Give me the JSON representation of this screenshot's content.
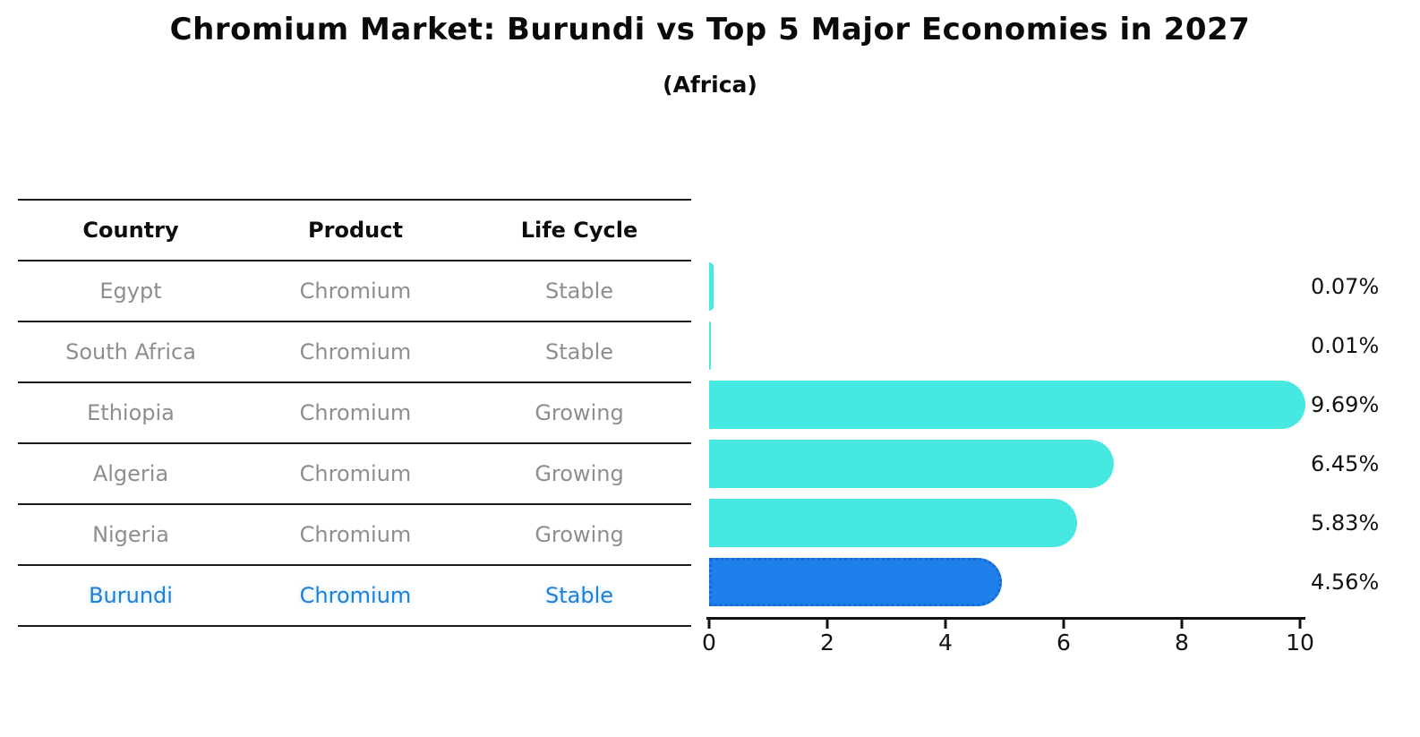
{
  "title": "Chromium Market: Burundi vs Top 5 Major Economies in 2027",
  "subtitle": "(Africa)",
  "table": {
    "headers": [
      "Country",
      "Product",
      "Life Cycle"
    ],
    "rows": [
      {
        "country": "Egypt",
        "product": "Chromium",
        "life_cycle": "Stable",
        "highlight": false
      },
      {
        "country": "South Africa",
        "product": "Chromium",
        "life_cycle": "Stable",
        "highlight": false
      },
      {
        "country": "Ethiopia",
        "product": "Chromium",
        "life_cycle": "Growing",
        "highlight": false
      },
      {
        "country": "Algeria",
        "product": "Chromium",
        "life_cycle": "Growing",
        "highlight": false
      },
      {
        "country": "Nigeria",
        "product": "Chromium",
        "life_cycle": "Growing",
        "highlight": false
      },
      {
        "country": "Burundi",
        "product": "Chromium",
        "life_cycle": "Stable",
        "highlight": true
      }
    ]
  },
  "chart_data": {
    "type": "bar",
    "orientation": "horizontal",
    "title": "Chromium Market: Burundi vs Top 5 Major Economies in 2027 (Africa)",
    "categories": [
      "Egypt",
      "South Africa",
      "Ethiopia",
      "Algeria",
      "Nigeria",
      "Burundi"
    ],
    "values": [
      0.07,
      0.01,
      9.69,
      6.45,
      5.83,
      4.56
    ],
    "value_labels": [
      "0.07%",
      "0.01%",
      "9.69%",
      "6.45%",
      "5.83%",
      "4.56%"
    ],
    "xlabel": "",
    "ylabel": "",
    "xlim": [
      0,
      10
    ],
    "x_ticks": [
      "0",
      "2",
      "4",
      "6",
      "8",
      "10"
    ],
    "x_tick_values": [
      0,
      2,
      4,
      6,
      8,
      10
    ],
    "grid": false,
    "legend": null,
    "highlight_index": 5,
    "colors": {
      "bar_default": "#46e8e1",
      "bar_highlight": "#1e80eb",
      "bar_highlight_border": "#1569d0",
      "highlight_text": "#1e80d4",
      "table_text": "#8e8e8e",
      "axis_text": "#111111"
    }
  }
}
